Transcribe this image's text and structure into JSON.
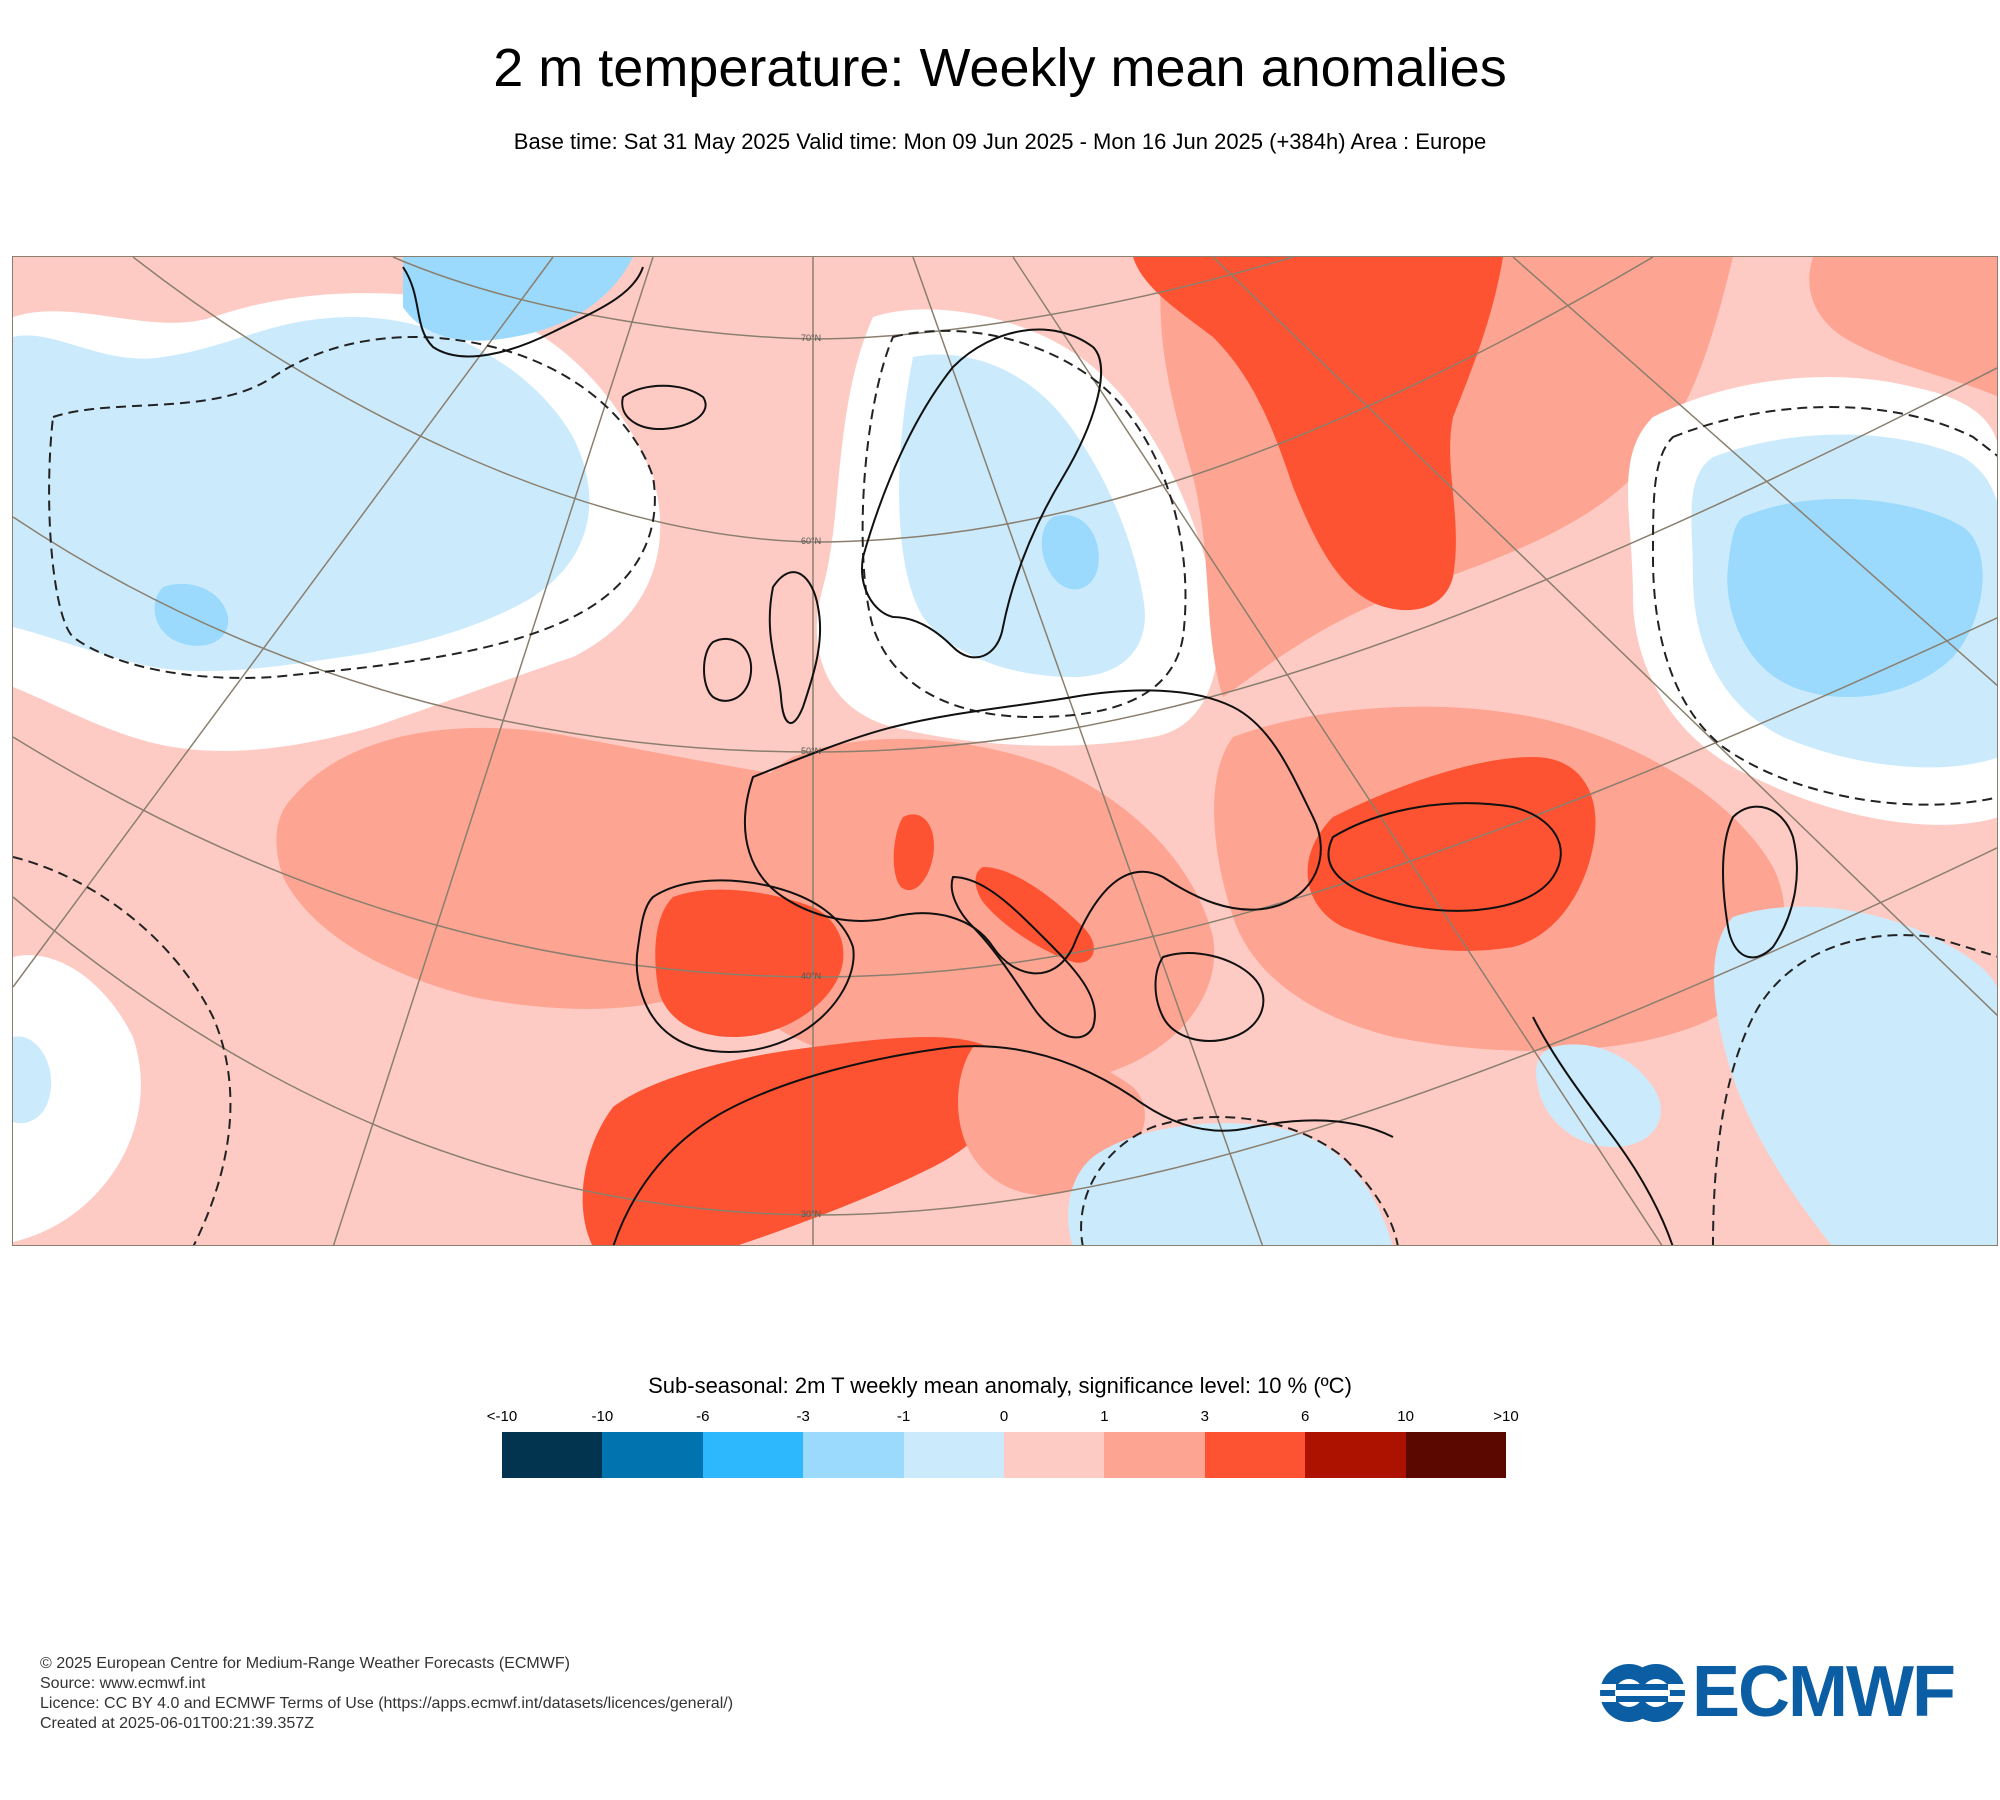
{
  "header": {
    "title": "2 m temperature: Weekly mean anomalies",
    "subtitle": "Base time: Sat 31 May 2025 Valid time: Mon 09 Jun 2025 - Mon 16 Jun 2025 (+384h) Area : Europe"
  },
  "map": {
    "region": "Europe",
    "lat_labels": [
      "70°N",
      "60°N",
      "50°N",
      "40°N",
      "30°N"
    ]
  },
  "legend": {
    "title": "Sub-seasonal: 2m T weekly mean anomaly, significance level: 10 % (ºC)",
    "ticks": [
      "<-10",
      "-10",
      "-6",
      "-3",
      "-1",
      "0",
      "1",
      "3",
      "6",
      "10",
      ">10"
    ],
    "colors": [
      "#02334f",
      "#0174b0",
      "#2db7fd",
      "#9bd9fd",
      "#cbebfd",
      "#fecbc4",
      "#fea492",
      "#fd5332",
      "#ad1200",
      "#5a0800"
    ]
  },
  "footer": {
    "lines": [
      "© 2025 European Centre for Medium-Range Weather Forecasts (ECMWF)",
      "Source: www.ecmwf.int",
      "Licence: CC BY 4.0 and ECMWF Terms of Use (https://apps.ecmwf.int/datasets/licences/general/)",
      "Created at 2025-06-01T00:21:39.357Z"
    ]
  },
  "logo": {
    "text": "ECMWF",
    "color": "#0b5ea3"
  }
}
